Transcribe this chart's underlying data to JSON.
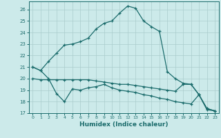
{
  "xlabel": "Humidex (Indice chaleur)",
  "background_color": "#cceaea",
  "grid_color": "#aacccc",
  "line_color": "#1a6b6b",
  "xlim": [
    -0.5,
    23.5
  ],
  "ylim": [
    17,
    26.7
  ],
  "yticks": [
    17,
    18,
    19,
    20,
    21,
    22,
    23,
    24,
    25,
    26
  ],
  "xticks": [
    0,
    1,
    2,
    3,
    4,
    5,
    6,
    7,
    8,
    9,
    10,
    11,
    12,
    13,
    14,
    15,
    16,
    17,
    18,
    19,
    20,
    21,
    22,
    23
  ],
  "series": [
    {
      "x": [
        0,
        1,
        2,
        3,
        4,
        5,
        6,
        7,
        8,
        9,
        10,
        11,
        12,
        13,
        14,
        15,
        16,
        17,
        18,
        19,
        20,
        21,
        22,
        23
      ],
      "y": [
        21.0,
        20.7,
        21.5,
        22.2,
        22.9,
        23.0,
        23.2,
        23.5,
        24.3,
        24.8,
        25.0,
        25.7,
        26.3,
        26.1,
        25.0,
        24.5,
        24.1,
        20.6,
        20.0,
        19.6,
        19.5,
        18.6,
        17.4,
        17.2
      ]
    },
    {
      "x": [
        0,
        1,
        2,
        3,
        4,
        5,
        6,
        7,
        8,
        9,
        10,
        11,
        12,
        13,
        14,
        15,
        16,
        17,
        18,
        19,
        20,
        21,
        22,
        23
      ],
      "y": [
        20.0,
        19.9,
        19.9,
        19.9,
        19.9,
        19.9,
        19.9,
        19.9,
        19.8,
        19.7,
        19.6,
        19.5,
        19.5,
        19.4,
        19.3,
        19.2,
        19.1,
        19.0,
        18.9,
        19.5,
        19.5,
        18.6,
        17.4,
        17.2
      ]
    },
    {
      "x": [
        0,
        1,
        2,
        3,
        4,
        5,
        6,
        7,
        8,
        9,
        10,
        11,
        12,
        13,
        14,
        15,
        16,
        17,
        18,
        19,
        20,
        21,
        22,
        23
      ],
      "y": [
        21.0,
        20.7,
        20.0,
        18.7,
        18.0,
        19.1,
        19.0,
        19.2,
        19.3,
        19.5,
        19.2,
        19.0,
        18.9,
        18.8,
        18.6,
        18.5,
        18.3,
        18.2,
        18.0,
        17.9,
        17.8,
        18.6,
        17.3,
        17.2
      ]
    }
  ]
}
